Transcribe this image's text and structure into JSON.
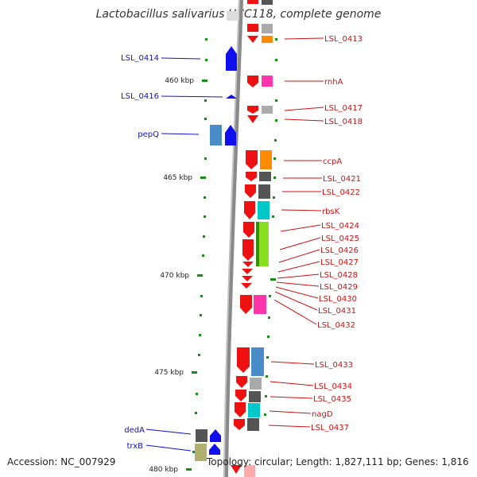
{
  "title": "Lactobacillus salivarius UCC118, complete genome",
  "footer": {
    "accession": "Accession: NC_007929",
    "summary": "Topology: circular; Length: 1,827,111 bp; Genes: 1,816"
  },
  "scale_labels": [
    "460 kbp",
    "465 kbp",
    "470 kbp",
    "475 kbp",
    "480 kbp"
  ],
  "left_labels": [
    "LSL_0414",
    "LSL_0416",
    "pepQ",
    "dedA",
    "trxB"
  ],
  "right_labels": [
    "LSL_0413",
    "rnhA",
    "LSL_0417",
    "LSL_0418",
    "ccpA",
    "LSL_0421",
    "LSL_0422",
    "rbsK",
    "LSL_0424",
    "LSL_0425",
    "LSL_0426",
    "LSL_0427",
    "LSL_0428",
    "LSL_0429",
    "LSL_0430",
    "LSL_0431",
    "LSL_0432",
    "LSL_0433",
    "LSL_0434",
    "LSL_0435",
    "nagD",
    "LSL_0437"
  ],
  "colors": {
    "backbone": "#8a8a8a",
    "forward_strand": "#1010ee",
    "reverse_strand": "#ee1111",
    "tick": "#1a8a1a",
    "label_left": "#1010cc",
    "label_right": "#cc1111",
    "cog": [
      "#ff8c00",
      "#ff33aa",
      "#aaaaaa",
      "#555555",
      "#00c8c8",
      "#88e020",
      "#4a8cc8",
      "#b0b070",
      "#333333"
    ]
  }
}
